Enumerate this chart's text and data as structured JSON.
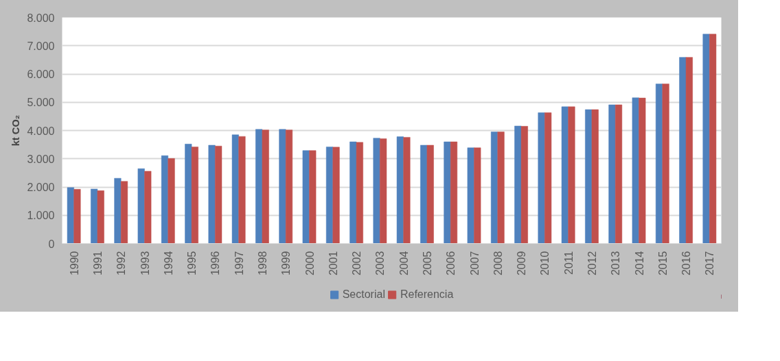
{
  "chart_data": {
    "type": "bar",
    "ylabel": "kt CO₂",
    "categories": [
      "1990",
      "1991",
      "1992",
      "1993",
      "1994",
      "1995",
      "1996",
      "1997",
      "1998",
      "1999",
      "2000",
      "2001",
      "2002",
      "2003",
      "2004",
      "2005",
      "2006",
      "2007",
      "2008",
      "2009",
      "2010",
      "2011",
      "2012",
      "2013",
      "2014",
      "2015",
      "2016",
      "2017"
    ],
    "series": [
      {
        "name": "Sectorial",
        "color": "#4f81bd",
        "values": [
          1980,
          1930,
          2310,
          2650,
          3110,
          3520,
          3480,
          3850,
          4040,
          4040,
          3290,
          3420,
          3600,
          3730,
          3780,
          3480,
          3600,
          3390,
          3950,
          4160,
          4630,
          4840,
          4740,
          4910,
          5160,
          5650,
          6590,
          7410
        ]
      },
      {
        "name": "Referencia",
        "color": "#c0504d",
        "values": [
          1920,
          1870,
          2200,
          2560,
          3010,
          3420,
          3450,
          3790,
          4020,
          4020,
          3290,
          3410,
          3580,
          3710,
          3760,
          3480,
          3600,
          3390,
          3950,
          4150,
          4630,
          4840,
          4740,
          4910,
          5150,
          5650,
          6590,
          7410
        ]
      }
    ],
    "ylim": [
      0,
      8000
    ],
    "yticks": [
      {
        "value": 0,
        "label": "0"
      },
      {
        "value": 1000,
        "label": "1.000"
      },
      {
        "value": 2000,
        "label": "2.000"
      },
      {
        "value": 3000,
        "label": "3.000"
      },
      {
        "value": 4000,
        "label": "4.000"
      },
      {
        "value": 5000,
        "label": "5.000"
      },
      {
        "value": 6000,
        "label": "6.000"
      },
      {
        "value": 7000,
        "label": "7.000"
      },
      {
        "value": 8000,
        "label": "8.000"
      }
    ],
    "grid": "y",
    "legend": "bottom"
  }
}
